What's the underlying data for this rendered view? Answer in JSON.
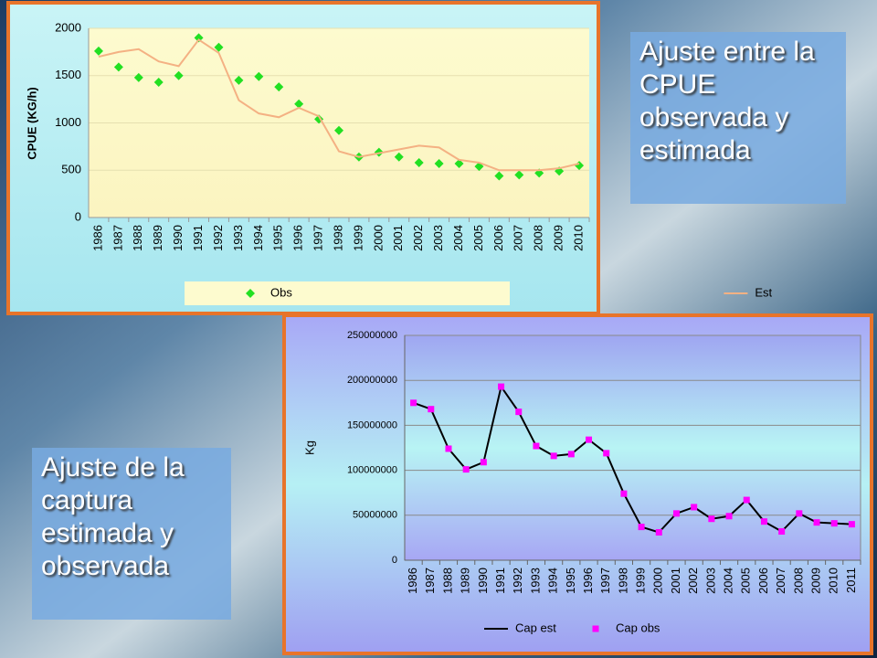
{
  "chart_data": [
    {
      "type": "line",
      "y_label": "CPUE (KG/h)",
      "categories": [
        "1986",
        "1987",
        "1988",
        "1989",
        "1990",
        "1991",
        "1992",
        "1993",
        "1994",
        "1995",
        "1996",
        "1997",
        "1998",
        "1999",
        "2000",
        "2001",
        "2002",
        "2003",
        "2004",
        "2005",
        "2006",
        "2007",
        "2008",
        "2009",
        "2010"
      ],
      "series": [
        {
          "name": "Obs",
          "color": "#22e022",
          "marker": "diamond",
          "values": [
            1760,
            1590,
            1480,
            1430,
            1500,
            1900,
            1800,
            1450,
            1490,
            1380,
            1200,
            1040,
            920,
            640,
            690,
            640,
            580,
            570,
            570,
            540,
            440,
            450,
            470,
            490,
            550
          ]
        },
        {
          "name": "Est",
          "color": "#f4b183",
          "marker": null,
          "values": [
            1700,
            1750,
            1780,
            1650,
            1600,
            1880,
            1740,
            1240,
            1100,
            1060,
            1160,
            1070,
            700,
            640,
            680,
            720,
            760,
            740,
            610,
            580,
            500,
            500,
            500,
            520,
            570
          ]
        }
      ],
      "ylim": [
        0,
        2000
      ],
      "yticks": [
        0,
        500,
        1000,
        1500,
        2000
      ],
      "grid": true
    },
    {
      "type": "line",
      "y_label": "Kg",
      "categories": [
        "1986",
        "1987",
        "1988",
        "1989",
        "1990",
        "1991",
        "1992",
        "1993",
        "1994",
        "1995",
        "1996",
        "1997",
        "1998",
        "1999",
        "2000",
        "2001",
        "2002",
        "2003",
        "2004",
        "2005",
        "2006",
        "2007",
        "2008",
        "2009",
        "2010",
        "2011"
      ],
      "series": [
        {
          "name": "Cap est",
          "color": "#000000",
          "marker": null,
          "values": [
            175000000,
            168000000,
            124000000,
            101000000,
            109000000,
            193000000,
            165000000,
            127000000,
            116000000,
            118000000,
            134000000,
            119000000,
            74000000,
            37000000,
            31000000,
            52000000,
            59000000,
            46000000,
            49000000,
            67000000,
            43000000,
            32000000,
            52000000,
            42000000,
            41000000,
            40000000
          ]
        },
        {
          "name": "Cap obs",
          "color": "#ff00ff",
          "marker": "square",
          "values": [
            175000000,
            168000000,
            124000000,
            101000000,
            109000000,
            193000000,
            165000000,
            127000000,
            116000000,
            118000000,
            134000000,
            119000000,
            74000000,
            37000000,
            31000000,
            52000000,
            59000000,
            46000000,
            49000000,
            67000000,
            43000000,
            32000000,
            52000000,
            42000000,
            41000000,
            40000000
          ]
        }
      ],
      "ylim": [
        0,
        250000000
      ],
      "yticks": [
        0,
        50000000,
        100000000,
        150000000,
        200000000,
        250000000
      ],
      "grid": true
    }
  ],
  "text_boxes": [
    "Ajuste entre la CPUE observada y estimada",
    "Ajuste de la captura estimada y observada"
  ]
}
